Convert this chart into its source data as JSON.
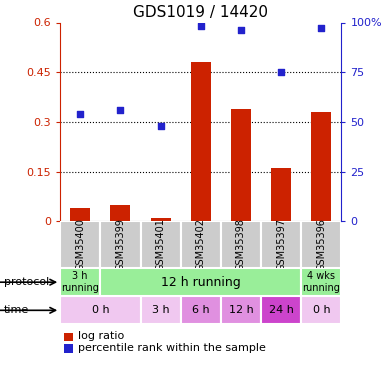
{
  "title": "GDS1019 / 14420",
  "samples": [
    "GSM35400",
    "GSM35399",
    "GSM35401",
    "GSM35402",
    "GSM35398",
    "GSM35397",
    "GSM35396"
  ],
  "log_ratio": [
    0.04,
    0.05,
    0.01,
    0.48,
    0.34,
    0.16,
    0.33
  ],
  "percentile_rank": [
    54,
    56,
    48,
    98,
    96,
    75,
    97
  ],
  "ylim_left": [
    0,
    0.6
  ],
  "ylim_right": [
    0,
    100
  ],
  "yticks_left": [
    0,
    0.15,
    0.3,
    0.45,
    0.6
  ],
  "yticks_right": [
    0,
    25,
    50,
    75,
    100
  ],
  "ytick_labels_left": [
    "0",
    "0.15",
    "0.3",
    "0.45",
    "0.6"
  ],
  "ytick_labels_right": [
    "0",
    "25",
    "50",
    "75",
    "100%"
  ],
  "hlines": [
    0.15,
    0.3,
    0.45
  ],
  "bar_color": "#cc2200",
  "scatter_color": "#2222cc",
  "sample_box_color": "#cccccc",
  "protocol_data": [
    [
      0,
      1,
      "3 h\nrunning",
      "#99ee99"
    ],
    [
      1,
      6,
      "12 h running",
      "#99ee99"
    ],
    [
      6,
      7,
      "4 wks\nrunning",
      "#99ee99"
    ]
  ],
  "time_data": [
    [
      0,
      2,
      "0 h",
      "#f0c8f0"
    ],
    [
      2,
      3,
      "3 h",
      "#f0c8f0"
    ],
    [
      3,
      4,
      "6 h",
      "#e090e0"
    ],
    [
      4,
      5,
      "12 h",
      "#e090e0"
    ],
    [
      5,
      6,
      "24 h",
      "#cc44cc"
    ],
    [
      6,
      7,
      "0 h",
      "#f0c8f0"
    ]
  ],
  "bar_width": 0.5,
  "xlabel_color": "#cc2200",
  "ylabel_right_color": "#2222cc"
}
